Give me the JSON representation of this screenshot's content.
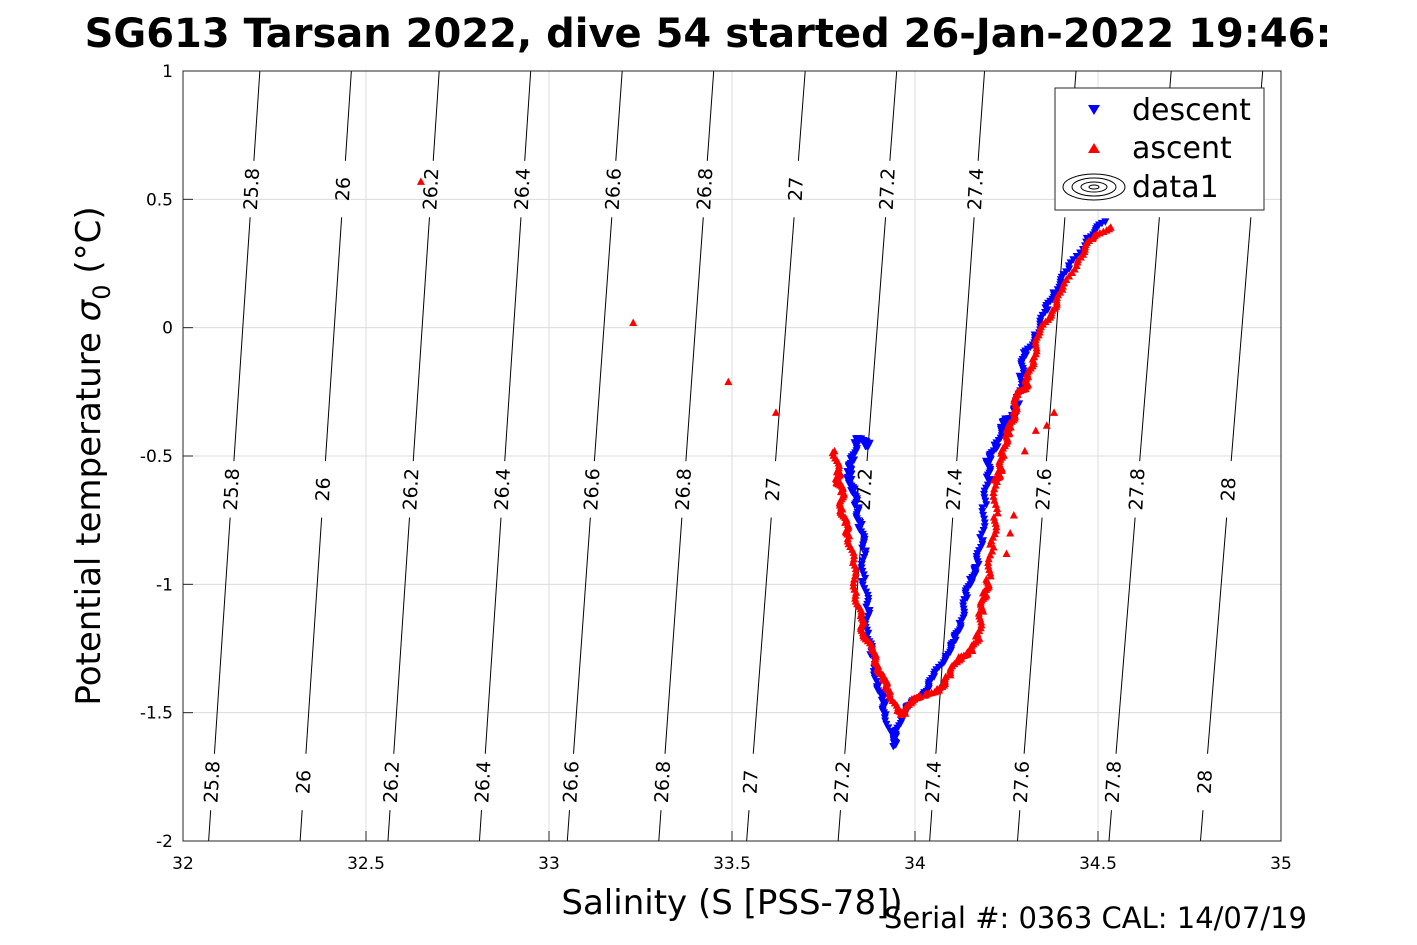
{
  "chart_data": {
    "type": "scatter",
    "title": "SG613 Tarsan 2022, dive 54 started 26-Jan-2022 19:46:",
    "xlabel": "Salinity (S [PSS-78])",
    "ylabel_main": "Potential temperature ",
    "ylabel_symbol": "σ",
    "ylabel_sub": "0",
    "ylabel_unit": " (°C)",
    "xlim": [
      32,
      35
    ],
    "ylim": [
      -2,
      1
    ],
    "xticks": [
      "32",
      "32.5",
      "33",
      "33.5",
      "34",
      "34.5",
      "35"
    ],
    "yticks": [
      "1",
      "0.5",
      "0",
      "-0.5",
      "-1",
      "-1.5",
      "-2"
    ],
    "grid": true,
    "legend_position": "top-right",
    "legend": [
      {
        "label": "descent",
        "marker": "triangle-down",
        "color": "#0000ff"
      },
      {
        "label": "ascent",
        "marker": "triangle-up",
        "color": "#ff0000"
      },
      {
        "label": "data1",
        "marker": "contour",
        "color": "#000000"
      }
    ],
    "contours": [
      {
        "level": "25.8",
        "top": [
          32.21,
          1.0
        ],
        "bottom": [
          32.07,
          -2.0
        ]
      },
      {
        "level": "26",
        "top": [
          32.46,
          1.0
        ],
        "bottom": [
          32.32,
          -2.0
        ]
      },
      {
        "level": "26.2",
        "top": [
          32.7,
          1.0
        ],
        "bottom": [
          32.56,
          -2.0
        ]
      },
      {
        "level": "26.4",
        "top": [
          32.95,
          1.0
        ],
        "bottom": [
          32.81,
          -2.0
        ]
      },
      {
        "level": "26.6",
        "top": [
          33.2,
          1.0
        ],
        "bottom": [
          33.05,
          -2.0
        ]
      },
      {
        "level": "26.8",
        "top": [
          33.45,
          1.0
        ],
        "bottom": [
          33.3,
          -2.0
        ]
      },
      {
        "level": "27",
        "top": [
          33.7,
          1.0
        ],
        "bottom": [
          33.54,
          -2.0
        ]
      },
      {
        "level": "27.2",
        "top": [
          33.95,
          1.0
        ],
        "bottom": [
          33.79,
          -2.0
        ]
      },
      {
        "level": "27.4",
        "top": [
          34.19,
          1.0
        ],
        "bottom": [
          34.04,
          -2.0
        ]
      },
      {
        "level": "27.6",
        "top": [
          34.44,
          1.0
        ],
        "bottom": [
          34.28,
          -2.0
        ]
      },
      {
        "level": "27.8",
        "top": [
          34.7,
          1.0
        ],
        "bottom": [
          34.53,
          -2.0
        ]
      },
      {
        "level": "28",
        "top": [
          34.95,
          1.0
        ],
        "bottom": [
          34.78,
          -2.0
        ]
      }
    ],
    "contour_label_rows_y": [
      0.54,
      -0.63,
      -1.77
    ],
    "series": [
      {
        "name": "descent",
        "color": "#0000ff",
        "marker": "triangle-down",
        "path": [
          [
            34.52,
            0.4
          ],
          [
            34.47,
            0.35
          ],
          [
            34.42,
            0.24
          ],
          [
            34.38,
            0.13
          ],
          [
            34.36,
            0.06
          ],
          [
            34.33,
            -0.02
          ],
          [
            34.3,
            -0.1
          ],
          [
            34.29,
            -0.2
          ],
          [
            34.28,
            -0.3
          ],
          [
            34.27,
            -0.33
          ],
          [
            34.25,
            -0.36
          ],
          [
            34.24,
            -0.4
          ],
          [
            34.22,
            -0.46
          ],
          [
            34.2,
            -0.51
          ],
          [
            34.2,
            -0.6
          ],
          [
            34.19,
            -0.71
          ],
          [
            34.18,
            -0.82
          ],
          [
            34.17,
            -0.93
          ],
          [
            34.15,
            -1.0
          ],
          [
            34.14,
            -1.06
          ],
          [
            34.12,
            -1.15
          ],
          [
            34.11,
            -1.23
          ],
          [
            34.08,
            -1.3
          ],
          [
            34.05,
            -1.36
          ],
          [
            34.02,
            -1.42
          ],
          [
            33.99,
            -1.48
          ],
          [
            33.96,
            -1.52
          ],
          [
            33.95,
            -1.58
          ],
          [
            33.94,
            -1.63
          ],
          [
            33.92,
            -1.52
          ],
          [
            33.91,
            -1.45
          ],
          [
            33.9,
            -1.38
          ],
          [
            33.88,
            -1.28
          ],
          [
            33.87,
            -1.2
          ],
          [
            33.87,
            -1.08
          ],
          [
            33.86,
            -0.97
          ],
          [
            33.86,
            -0.87
          ],
          [
            33.85,
            -0.77
          ],
          [
            33.84,
            -0.68
          ],
          [
            33.83,
            -0.63
          ],
          [
            33.82,
            -0.6
          ],
          [
            33.82,
            -0.55
          ],
          [
            33.83,
            -0.5
          ],
          [
            33.84,
            -0.45
          ],
          [
            33.85,
            -0.44
          ],
          [
            33.87,
            -0.44
          ],
          [
            33.87,
            -0.46
          ]
        ]
      },
      {
        "name": "ascent",
        "color": "#ff0000",
        "marker": "triangle-up",
        "path": [
          [
            34.53,
            0.4
          ],
          [
            34.48,
            0.33
          ],
          [
            34.44,
            0.25
          ],
          [
            34.4,
            0.15
          ],
          [
            34.37,
            0.06
          ],
          [
            34.34,
            -0.04
          ],
          [
            34.32,
            -0.12
          ],
          [
            34.31,
            -0.18
          ],
          [
            34.3,
            -0.24
          ],
          [
            34.28,
            -0.27
          ],
          [
            34.27,
            -0.32
          ],
          [
            34.26,
            -0.38
          ],
          [
            34.25,
            -0.43
          ],
          [
            34.24,
            -0.5
          ],
          [
            34.23,
            -0.55
          ],
          [
            34.22,
            -0.6
          ],
          [
            34.22,
            -0.75
          ],
          [
            34.21,
            -0.85
          ],
          [
            34.2,
            -0.97
          ],
          [
            34.19,
            -1.05
          ],
          [
            34.18,
            -1.12
          ],
          [
            34.17,
            -1.2
          ],
          [
            34.15,
            -1.26
          ],
          [
            34.12,
            -1.3
          ],
          [
            34.09,
            -1.36
          ],
          [
            34.06,
            -1.4
          ],
          [
            34.02,
            -1.44
          ],
          [
            33.99,
            -1.46
          ],
          [
            33.97,
            -1.5
          ],
          [
            33.95,
            -1.48
          ],
          [
            33.93,
            -1.42
          ],
          [
            33.91,
            -1.37
          ],
          [
            33.9,
            -1.3
          ],
          [
            33.88,
            -1.25
          ],
          [
            33.86,
            -1.2
          ],
          [
            33.85,
            -1.12
          ],
          [
            33.84,
            -1.02
          ],
          [
            33.83,
            -0.92
          ],
          [
            33.82,
            -0.82
          ],
          [
            33.81,
            -0.75
          ],
          [
            33.8,
            -0.7
          ],
          [
            33.8,
            -0.65
          ],
          [
            33.79,
            -0.6
          ],
          [
            33.79,
            -0.55
          ],
          [
            33.78,
            -0.48
          ]
        ],
        "scattered": [
          [
            32.65,
            0.57
          ],
          [
            33.23,
            0.02
          ],
          [
            33.49,
            -0.21
          ],
          [
            33.62,
            -0.33
          ],
          [
            34.38,
            -0.33
          ],
          [
            34.36,
            -0.38
          ],
          [
            34.33,
            -0.4
          ],
          [
            34.3,
            -0.48
          ],
          [
            34.27,
            -0.73
          ],
          [
            34.26,
            -0.8
          ],
          [
            34.25,
            -0.88
          ]
        ]
      }
    ]
  },
  "footer": {
    "serial": "Serial #: 0363  CAL: 14/07/19"
  }
}
